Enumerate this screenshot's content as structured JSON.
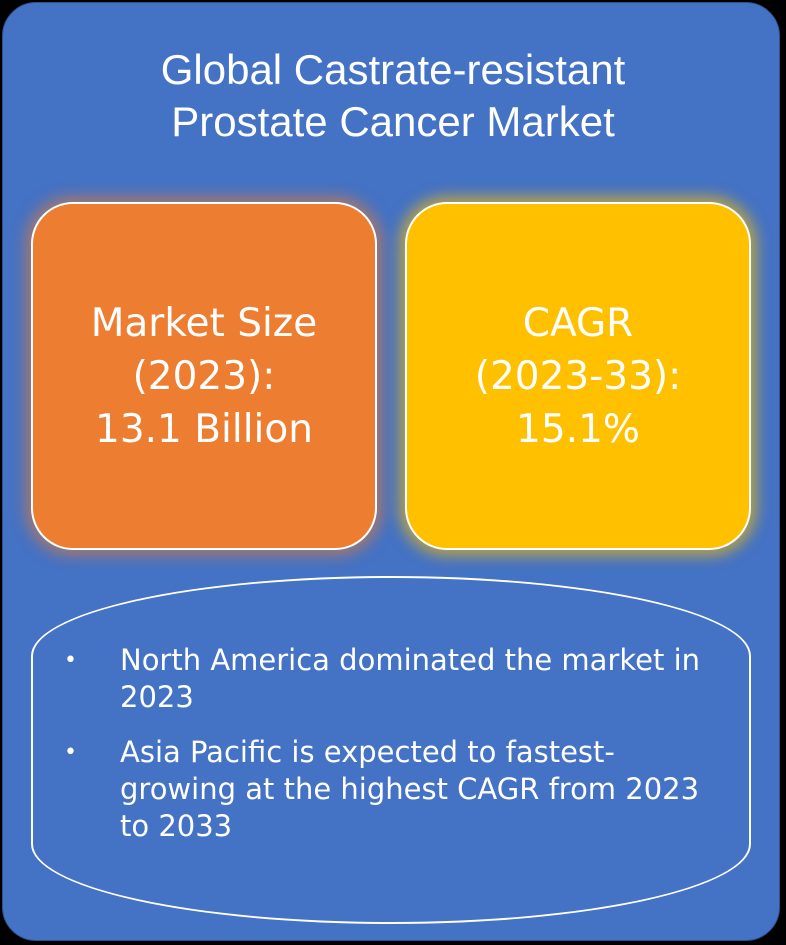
{
  "title": {
    "line1": "Global Castrate-resistant",
    "line2": "Prostate Cancer Market"
  },
  "market_size": {
    "line1": "Market Size",
    "line2": "(2023):",
    "line3": "13.1 Billion",
    "color": "#ED7D31"
  },
  "cagr": {
    "line1": "CAGR",
    "line2": "(2023-33):",
    "line3": "15.1%",
    "color": "#FFC000"
  },
  "highlights": {
    "bullet_glyph": "•",
    "items": [
      "North America dominated the market in 2023",
      "Asia Pacific is expected to fastest-growing at the highest CAGR from 2023 to 2033"
    ]
  },
  "colors": {
    "background": "#4472C4",
    "text": "#FFFFFF"
  }
}
